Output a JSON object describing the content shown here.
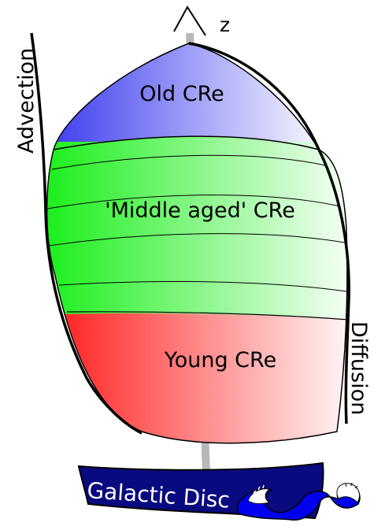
{
  "labels": {
    "z_axis": "z",
    "old": "Old CRe",
    "middle": "'Middle aged' CRe",
    "young": "Young CRe",
    "advection": "Advection",
    "diffusion": "Diffusion",
    "disc": "Galactic Disc"
  },
  "colors": {
    "old": "#3333ee",
    "middle": "#22ee22",
    "young": "#ff1111",
    "disc": "#0a0a80",
    "wave": "#0000ee",
    "axis": "#b8b8b8"
  }
}
